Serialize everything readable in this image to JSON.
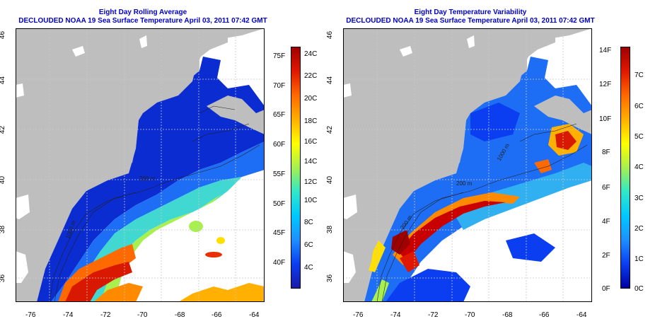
{
  "panels": [
    {
      "title": "Eight Day Rolling Average",
      "subtitle": "DECLOUDED NOAA 19 Sea Surface Temperature April 03, 2011 07:42 GMT",
      "x_ticks": [
        "-76",
        "-74",
        "-72",
        "-70",
        "-68",
        "-66",
        "-64"
      ],
      "y_ticks": [
        "36",
        "38",
        "40",
        "42",
        "44",
        "46"
      ],
      "colorbar": {
        "left_labels": [
          "40F",
          "45F",
          "50F",
          "55F",
          "60F",
          "65F",
          "70F",
          "75F"
        ],
        "right_labels": [
          "4C",
          "6C",
          "8C",
          "10C",
          "12C",
          "14C",
          "16C",
          "18C",
          "20C",
          "22C",
          "24C"
        ],
        "colors": [
          "#1a1aa8",
          "#0a3ef0",
          "#1e90ff",
          "#00c8ff",
          "#30e8c8",
          "#a8f050",
          "#ffff00",
          "#ffb000",
          "#ff6a00",
          "#e01800",
          "#a00000"
        ]
      },
      "contour_labels": [
        "200 m",
        "1000 m"
      ]
    },
    {
      "title": "Eight Day Temperature Variability",
      "subtitle": "DECLOUDED NOAA 19 Sea Surface Temperature April 03, 2011 07:42 GMT",
      "x_ticks": [
        "-76",
        "-74",
        "-72",
        "-70",
        "-68",
        "-66",
        "-64"
      ],
      "y_ticks": [
        "36",
        "38",
        "40",
        "42",
        "44",
        "46"
      ],
      "colorbar": {
        "left_labels": [
          "0F",
          "2F",
          "4F",
          "6F",
          "8F",
          "10F",
          "12F",
          "14F"
        ],
        "right_labels": [
          "0C",
          "1C",
          "2C",
          "3C",
          "4C",
          "5C",
          "6C",
          "7C"
        ],
        "colors": [
          "#0000a0",
          "#0a3ef0",
          "#1e90ff",
          "#00c8ff",
          "#30e8c8",
          "#a8f050",
          "#ffff00",
          "#ffb000",
          "#ff6a00",
          "#e01800",
          "#a00000"
        ]
      },
      "contour_labels": [
        "200 m",
        "1000 m",
        "200 m"
      ]
    }
  ],
  "colors": {
    "land": "#bebebe",
    "no_data": "#ffffff",
    "title": "#0000c8",
    "grid": "#c8c8c8"
  }
}
